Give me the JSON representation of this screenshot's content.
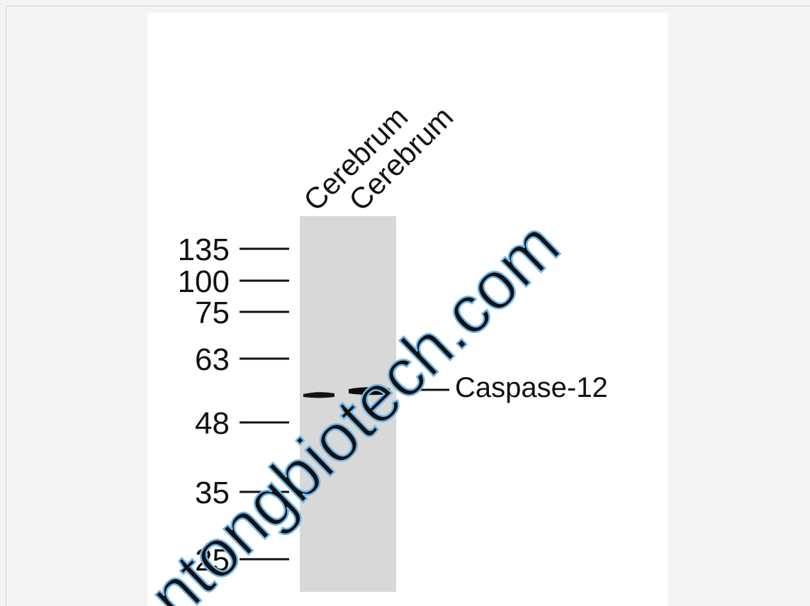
{
  "lanes": [
    {
      "label": "Cerebrum"
    },
    {
      "label": "Cerebrum"
    }
  ],
  "markers": [
    {
      "label": "135"
    },
    {
      "label": "100"
    },
    {
      "label": "75"
    },
    {
      "label": "63"
    },
    {
      "label": "48"
    },
    {
      "label": "35"
    },
    {
      "label": "25"
    }
  ],
  "band_label": "Caspase-12",
  "watermark": "ntongbiotech.com"
}
